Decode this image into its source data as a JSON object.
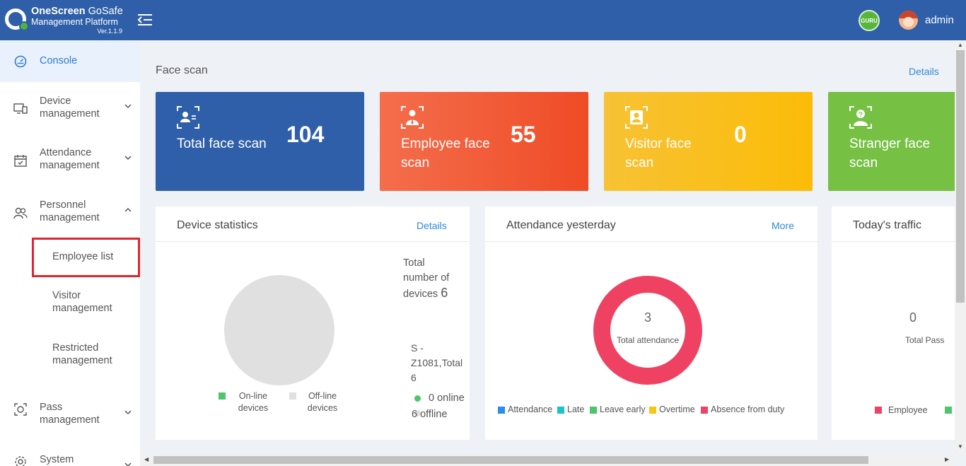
{
  "header": {
    "brand_bold": "OneScreen",
    "brand_rest": " GoSafe",
    "subtitle": "Management Platform",
    "version": "Ver.1.1.9",
    "badge": "GURU",
    "username": "admin"
  },
  "sidebar": {
    "console": "Console",
    "device": "Device management",
    "attendance": "Attendance management",
    "personnel": "Personnel management",
    "employee_list": "Employee list",
    "visitor": "Visitor management",
    "restricted": "Restricted management",
    "pass": "Pass management",
    "system": "System management"
  },
  "face_scan": {
    "title": "Face scan",
    "details": "Details",
    "cards": [
      {
        "label": "Total face scan",
        "value": "104",
        "color": "#2e5fa8"
      },
      {
        "label": "Employee face scan",
        "value": "55",
        "color": "#f05a35"
      },
      {
        "label": "Visitor face scan",
        "value": "0",
        "color": "#f9bf1f"
      },
      {
        "label": "Stranger face scan",
        "value": "",
        "color": "#76c043"
      }
    ]
  },
  "device_stats": {
    "title": "Device statistics",
    "details": "Details",
    "total_prefix": "Total number of devices",
    "total_value": "6",
    "group": "S - Z1081,Total 6",
    "online": "0 online",
    "offline": "6 offline",
    "legend_online": "On-line devices",
    "legend_offline": "Off-line devices",
    "online_count": 0,
    "offline_count": 6
  },
  "attendance": {
    "title": "Attendance yesterday",
    "more": "More",
    "total": "3",
    "total_label": "Total attendance",
    "legend": [
      {
        "label": "Attendance",
        "color": "#2d8cf0"
      },
      {
        "label": "Late",
        "color": "#19c3c9"
      },
      {
        "label": "Leave early",
        "color": "#4cc56c"
      },
      {
        "label": "Overtime",
        "color": "#f5c518"
      },
      {
        "label": "Absence from duty",
        "color": "#ef4262"
      }
    ]
  },
  "traffic": {
    "title": "Today's traffic",
    "value": "0",
    "label": "Total Pass",
    "legend_employee": "Employee"
  }
}
